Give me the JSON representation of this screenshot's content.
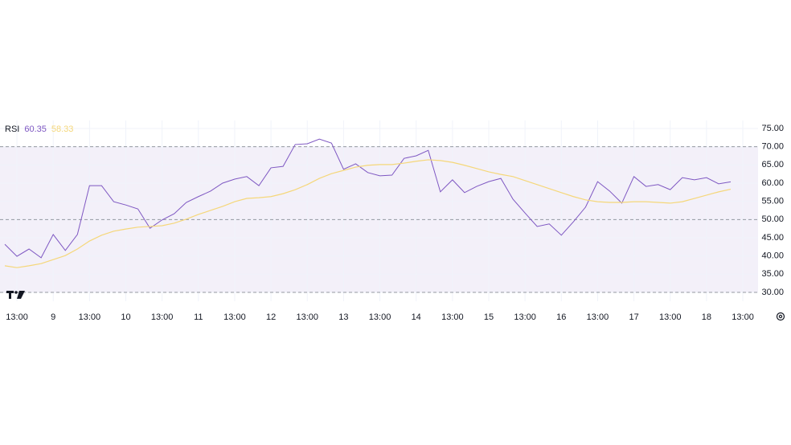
{
  "chart_data": {
    "type": "line",
    "title": "RSI",
    "categories": [
      null,
      "13:00",
      null,
      null,
      "9",
      null,
      null,
      "13:00",
      null,
      null,
      "10",
      null,
      null,
      "13:00",
      null,
      null,
      "11",
      null,
      null,
      "13:00",
      null,
      null,
      "12",
      null,
      null,
      "13:00",
      null,
      null,
      "13",
      null,
      null,
      "13:00",
      null,
      null,
      "14",
      null,
      null,
      "13:00",
      null,
      null,
      "15",
      null,
      null,
      "13:00",
      null,
      null,
      "16",
      null,
      null,
      "13:00",
      null,
      null,
      "17",
      null,
      null,
      "13:00",
      null,
      null,
      "18",
      null,
      null,
      "13:00"
    ],
    "series": [
      {
        "color": "#7e57c2",
        "values": [
          43.2,
          39.9,
          41.9,
          39.5,
          45.9,
          41.5,
          45.9,
          59.3,
          59.3,
          54.9,
          54.0,
          52.9,
          47.6,
          49.9,
          51.6,
          54.7,
          56.3,
          57.8,
          60.0,
          61.1,
          61.8,
          59.3,
          64.2,
          64.6,
          70.6,
          70.8,
          72.1,
          71.0,
          63.8,
          65.3,
          62.9,
          62.0,
          62.2,
          66.8,
          67.5,
          69.0,
          57.6,
          60.9,
          57.4,
          59.1,
          60.4,
          61.3,
          55.6,
          51.8,
          48.1,
          48.8,
          45.7,
          49.4,
          53.4,
          60.4,
          57.8,
          54.5,
          61.8,
          59.1,
          59.6,
          58.2,
          61.5,
          60.9,
          61.5,
          59.8,
          60.35,
          null
        ]
      },
      {
        "color": "#f5d77a",
        "values": [
          37.3,
          36.8,
          37.3,
          37.9,
          39.0,
          40.1,
          41.9,
          44.1,
          45.7,
          46.8,
          47.4,
          47.9,
          48.1,
          48.3,
          49.0,
          50.1,
          51.4,
          52.5,
          53.6,
          54.9,
          55.8,
          56.0,
          56.3,
          57.1,
          58.2,
          59.6,
          61.3,
          62.6,
          63.5,
          64.4,
          64.9,
          65.1,
          65.1,
          65.5,
          66.0,
          66.4,
          66.2,
          65.7,
          64.9,
          64.0,
          63.1,
          62.4,
          61.8,
          60.7,
          59.6,
          58.5,
          57.4,
          56.3,
          55.4,
          54.9,
          54.7,
          54.7,
          54.9,
          54.9,
          54.7,
          54.5,
          54.9,
          55.8,
          56.7,
          57.6,
          58.33,
          null
        ]
      }
    ],
    "ylim": [
      27.57,
      77.2
    ],
    "yticks": [
      {
        "value": 30,
        "label": "30.00"
      },
      {
        "value": 35,
        "label": "35.00"
      },
      {
        "value": 40,
        "label": "40.00"
      },
      {
        "value": 45,
        "label": "45.00"
      },
      {
        "value": 50,
        "label": "50.00"
      },
      {
        "value": 55,
        "label": "55.00"
      },
      {
        "value": 60,
        "label": "60.00"
      },
      {
        "value": 65,
        "label": "65.00"
      },
      {
        "value": 70,
        "label": "70.00"
      },
      {
        "value": 75,
        "label": "75.00"
      }
    ],
    "levels": [
      70,
      50,
      30
    ],
    "grid": true
  }
}
